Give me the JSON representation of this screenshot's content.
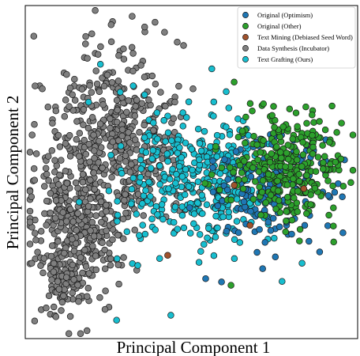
{
  "chart_data": {
    "type": "scatter",
    "title": "",
    "xlabel": "Principal Component 1",
    "ylabel": "Principal Component 2",
    "xlim": [
      -4,
      6.5
    ],
    "ylim": [
      -4,
      6
    ],
    "ticks": "none",
    "grid": false,
    "legend": "top-right",
    "series": [
      {
        "name": "Original (Optimism)",
        "color": "#1f77b4",
        "clusters": [
          {
            "cx": 3.9,
            "cy": 0.6,
            "sx": 1.0,
            "sy": 0.9,
            "n": 170
          }
        ],
        "points": [
          [
            1.7,
            -2.2
          ],
          [
            2.2,
            -2.3
          ],
          [
            3.5,
            -1.9
          ],
          [
            5.3,
            -1.4
          ]
        ]
      },
      {
        "name": "Original (Other)",
        "color": "#2ca02c",
        "clusters": [
          {
            "cx": 4.3,
            "cy": 1.1,
            "sx": 0.85,
            "sy": 0.85,
            "n": 300
          }
        ],
        "points": [
          [
            2.6,
            3.7
          ],
          [
            3.8,
            2.7
          ],
          [
            5.8,
            1.3
          ],
          [
            2.5,
            -2.4
          ]
        ]
      },
      {
        "name": "Text Mining (Debiased Seed Word)",
        "color": "#a0522d",
        "clusters": [],
        "points": [
          [
            0.5,
            -1.5
          ],
          [
            2.6,
            0.6
          ],
          [
            4.8,
            0.5
          ],
          [
            3.1,
            -0.6
          ]
        ]
      },
      {
        "name": "Data Synthesis (Incubator)",
        "color": "#7f7f7f",
        "clusters": [
          {
            "cx": -2.4,
            "cy": -0.6,
            "sx": 0.7,
            "sy": 1.2,
            "n": 380
          },
          {
            "cx": -1.4,
            "cy": 2.3,
            "sx": 0.9,
            "sy": 1.3,
            "n": 330
          },
          {
            "cx": -0.2,
            "cy": 1.4,
            "sx": 0.7,
            "sy": 1.0,
            "n": 120
          },
          {
            "cx": -2.8,
            "cy": -2.4,
            "sx": 0.3,
            "sy": 0.5,
            "n": 60
          }
        ],
        "points": [
          [
            0.1,
            5.5
          ],
          [
            0.4,
            5.2
          ],
          [
            0.8,
            4.9
          ],
          [
            1.0,
            4.8
          ],
          [
            1.3,
            3.5
          ],
          [
            -0.9,
            -1.0
          ],
          [
            -1.3,
            -1.6
          ]
        ]
      },
      {
        "name": "Text Grafting (Ours)",
        "color": "#17becf",
        "clusters": [
          {
            "cx": 1.9,
            "cy": 0.8,
            "sx": 1.0,
            "sy": 1.0,
            "n": 300
          },
          {
            "cx": 0.3,
            "cy": 0.6,
            "sx": 0.8,
            "sy": 1.2,
            "n": 90
          }
        ],
        "points": [
          [
            0.6,
            -3.3
          ],
          [
            -1.1,
            -1.6
          ],
          [
            -0.4,
            -0.9
          ],
          [
            -2.3,
            0.1
          ],
          [
            -2.0,
            3.1
          ],
          [
            -1.0,
            3.4
          ]
        ]
      }
    ]
  }
}
